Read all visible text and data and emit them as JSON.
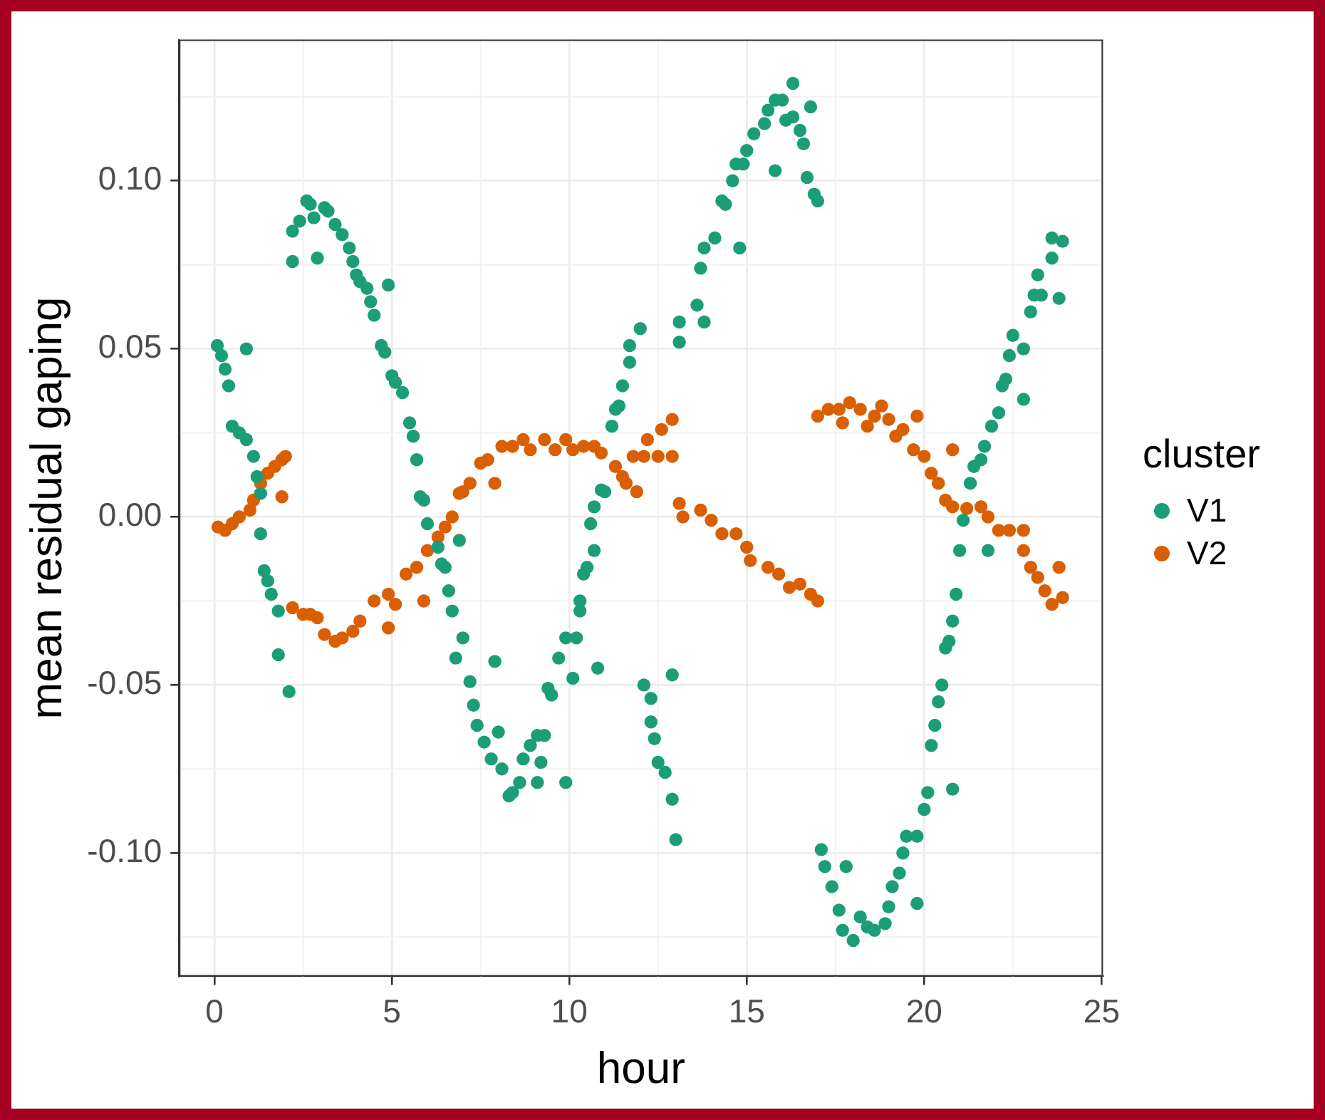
{
  "chart_data": {
    "type": "scatter",
    "xlabel": "hour",
    "ylabel": "mean residual gaping",
    "legend_title": "cluster",
    "legend": "right",
    "grid": true,
    "marker": "circle",
    "xlim": [
      -1,
      25.04
    ],
    "ylim": [
      -0.1367,
      0.142
    ],
    "xticks": [
      0,
      5,
      10,
      15,
      20,
      25
    ],
    "yticks": [
      {
        "value": -0.1,
        "label": "-0.10"
      },
      {
        "value": -0.05,
        "label": "-0.05"
      },
      {
        "value": 0,
        "label": "0.00"
      },
      {
        "value": 0.05,
        "label": "0.05"
      },
      {
        "value": 0.1,
        "label": "0.10"
      }
    ],
    "series": [
      {
        "name": "V1",
        "color": "#1b9e77",
        "x": [
          0.08,
          0.2,
          0.3,
          0.4,
          0.9,
          0.5,
          0.7,
          0.9,
          1.1,
          1.2,
          1.3,
          1.3,
          1.4,
          1.5,
          1.6,
          1.8,
          1.8,
          2.1,
          2.2,
          2.2,
          2.4,
          2.6,
          2.7,
          2.8,
          2.9,
          3.1,
          3.2,
          3.4,
          3.6,
          3.8,
          3.9,
          4.0,
          4.1,
          4.3,
          4.4,
          4.5,
          4.9,
          4.7,
          4.8,
          5.0,
          5.1,
          5.3,
          5.5,
          5.6,
          5.7,
          5.8,
          5.9,
          6.0,
          6.3,
          6.4,
          6.5,
          6.6,
          6.7,
          6.9,
          7.0,
          6.8,
          7.9,
          7.2,
          7.3,
          7.4,
          7.6,
          8.0,
          7.8,
          8.1,
          8.3,
          8.4,
          8.6,
          8.7,
          8.9,
          9.1,
          9.3,
          9.2,
          9.1,
          9.9,
          9.5,
          9.4,
          9.7,
          10.1,
          9.9,
          10.2,
          10.3,
          10.3,
          10.4,
          10.5,
          10.7,
          10.8,
          10.6,
          10.7,
          10.9,
          11.0,
          11.2,
          11.3,
          11.4,
          11.5,
          11.7,
          11.7,
          12.0,
          12.1,
          12.9,
          12.3,
          12.3,
          12.4,
          12.5,
          12.7,
          12.9,
          13.0,
          13.1,
          13.1,
          13.6,
          13.8,
          13.7,
          13.8,
          14.1,
          14.8,
          14.3,
          14.4,
          14.6,
          14.7,
          14.9,
          15.0,
          15.2,
          15.5,
          15.6,
          15.8,
          16.0,
          15.8,
          16.3,
          16.1,
          16.3,
          16.5,
          16.8,
          16.6,
          16.7,
          16.9,
          17.0,
          17.1,
          17.2,
          17.8,
          17.4,
          17.6,
          17.7,
          18.0,
          18.2,
          18.4,
          18.6,
          18.9,
          19.0,
          19.1,
          19.3,
          19.4,
          19.5,
          19.8,
          19.8,
          20.0,
          20.1,
          20.8,
          20.2,
          20.3,
          20.4,
          20.5,
          20.6,
          20.7,
          20.8,
          20.9,
          21.0,
          21.8,
          21.1,
          21.3,
          21.4,
          21.6,
          21.7,
          21.9,
          22.1,
          22.8,
          22.2,
          22.3,
          22.4,
          22.5,
          22.8,
          23.0,
          23.1,
          23.3,
          23.8,
          23.2,
          23.6,
          23.6,
          23.9
        ],
        "values": [
          0.051,
          0.048,
          0.044,
          0.039,
          0.05,
          0.027,
          0.025,
          0.023,
          0.018,
          0.012,
          0.007,
          -0.005,
          -0.016,
          -0.019,
          -0.023,
          -0.028,
          -0.041,
          -0.052,
          0.076,
          0.085,
          0.088,
          0.094,
          0.093,
          0.089,
          0.077,
          0.092,
          0.091,
          0.087,
          0.084,
          0.08,
          0.076,
          0.072,
          0.07,
          0.068,
          0.064,
          0.06,
          0.069,
          0.051,
          0.049,
          0.042,
          0.04,
          0.037,
          0.028,
          0.024,
          0.017,
          0.006,
          0.005,
          -0.002,
          -0.009,
          -0.014,
          -0.015,
          -0.022,
          -0.028,
          -0.007,
          -0.036,
          -0.042,
          -0.043,
          -0.049,
          -0.056,
          -0.062,
          -0.067,
          -0.064,
          -0.072,
          -0.075,
          -0.083,
          -0.082,
          -0.079,
          -0.072,
          -0.068,
          -0.065,
          -0.065,
          -0.073,
          -0.079,
          -0.079,
          -0.053,
          -0.051,
          -0.042,
          -0.048,
          -0.036,
          -0.036,
          -0.028,
          -0.025,
          -0.017,
          -0.015,
          -0.01,
          -0.045,
          -0.002,
          0.003,
          0.008,
          0.0075,
          0.027,
          0.032,
          0.033,
          0.039,
          0.046,
          0.051,
          0.056,
          -0.05,
          -0.047,
          -0.054,
          -0.061,
          -0.066,
          -0.073,
          -0.076,
          -0.084,
          -0.096,
          0.052,
          0.058,
          0.063,
          0.058,
          0.074,
          0.08,
          0.083,
          0.08,
          0.094,
          0.093,
          0.1,
          0.105,
          0.105,
          0.109,
          0.114,
          0.117,
          0.121,
          0.124,
          0.124,
          0.103,
          0.129,
          0.118,
          0.119,
          0.115,
          0.122,
          0.111,
          0.101,
          0.096,
          0.094,
          -0.099,
          -0.104,
          -0.104,
          -0.11,
          -0.117,
          -0.123,
          -0.126,
          -0.119,
          -0.122,
          -0.123,
          -0.121,
          -0.116,
          -0.11,
          -0.106,
          -0.1,
          -0.095,
          -0.095,
          -0.115,
          -0.087,
          -0.082,
          -0.081,
          -0.068,
          -0.062,
          -0.055,
          -0.05,
          -0.039,
          -0.037,
          -0.031,
          -0.023,
          -0.01,
          -0.01,
          -0.001,
          0.01,
          0.015,
          0.017,
          0.021,
          0.027,
          0.031,
          0.035,
          0.039,
          0.041,
          0.048,
          0.054,
          0.05,
          0.061,
          0.066,
          0.066,
          0.065,
          0.072,
          0.077,
          0.083,
          0.082
        ]
      },
      {
        "name": "V2",
        "color": "#d95f02",
        "x": [
          0.1,
          0.3,
          0.5,
          0.7,
          1.0,
          1.1,
          1.3,
          1.5,
          1.7,
          1.9,
          2.0,
          1.9,
          2.2,
          2.5,
          2.7,
          2.9,
          3.1,
          3.4,
          3.6,
          3.9,
          4.1,
          4.5,
          4.9,
          4.9,
          5.1,
          5.4,
          5.7,
          5.9,
          6.0,
          6.3,
          6.5,
          6.7,
          6.9,
          7.0,
          7.2,
          7.5,
          7.9,
          7.7,
          8.1,
          8.4,
          8.7,
          8.9,
          9.3,
          9.6,
          9.9,
          10.1,
          10.4,
          10.7,
          10.9,
          11.3,
          11.5,
          11.8,
          11.9,
          12.1,
          11.6,
          12.2,
          12.5,
          12.6,
          12.9,
          12.9,
          13.1,
          13.2,
          13.7,
          14.0,
          14.3,
          14.7,
          15.0,
          15.1,
          15.6,
          15.9,
          16.2,
          16.5,
          16.8,
          17.0,
          17.0,
          17.3,
          17.6,
          17.7,
          17.9,
          18.2,
          18.4,
          18.6,
          18.8,
          19.0,
          19.2,
          19.4,
          19.8,
          19.7,
          20.0,
          20.8,
          20.2,
          20.4,
          20.6,
          20.8,
          21.2,
          21.6,
          21.8,
          22.1,
          22.4,
          22.8,
          22.8,
          23.0,
          23.2,
          23.4,
          23.6,
          23.8,
          23.9
        ],
        "values": [
          -0.003,
          -0.004,
          -0.002,
          0.0,
          0.002,
          0.005,
          0.01,
          0.013,
          0.015,
          0.017,
          0.018,
          0.006,
          -0.027,
          -0.029,
          -0.029,
          -0.03,
          -0.035,
          -0.037,
          -0.036,
          -0.034,
          -0.031,
          -0.025,
          -0.023,
          -0.033,
          -0.026,
          -0.017,
          -0.015,
          -0.025,
          -0.01,
          -0.006,
          -0.003,
          0.0,
          0.007,
          0.0075,
          0.01,
          0.016,
          0.01,
          0.017,
          0.021,
          0.021,
          0.023,
          0.02,
          0.023,
          0.02,
          0.023,
          0.02,
          0.021,
          0.021,
          0.019,
          0.015,
          0.012,
          0.018,
          0.0075,
          0.018,
          0.01,
          0.023,
          0.018,
          0.026,
          0.018,
          0.029,
          0.004,
          0.0,
          0.002,
          -0.001,
          -0.005,
          -0.005,
          -0.009,
          -0.013,
          -0.015,
          -0.017,
          -0.021,
          -0.02,
          -0.023,
          -0.025,
          0.03,
          0.032,
          0.032,
          0.028,
          0.034,
          0.032,
          0.027,
          0.03,
          0.033,
          0.029,
          0.024,
          0.026,
          0.03,
          0.02,
          0.018,
          0.02,
          0.013,
          0.01,
          0.005,
          0.003,
          0.0025,
          0.003,
          0.0,
          -0.004,
          -0.004,
          -0.004,
          -0.01,
          -0.015,
          -0.018,
          -0.022,
          -0.026,
          -0.015,
          -0.024
        ]
      }
    ]
  }
}
